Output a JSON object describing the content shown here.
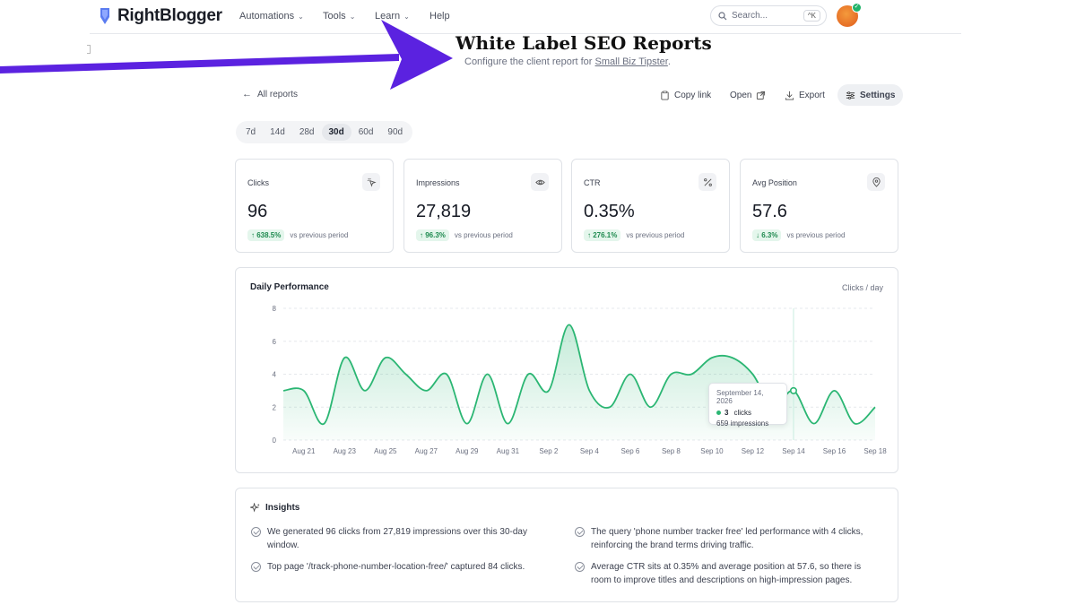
{
  "brand": {
    "name": "RightBlogger",
    "accent": "#2bb673",
    "arrow_color": "#5b22e0"
  },
  "nav": {
    "items": [
      {
        "label": "Automations",
        "has_menu": true
      },
      {
        "label": "Tools",
        "has_menu": true
      },
      {
        "label": "Learn",
        "has_menu": true
      },
      {
        "label": "Help",
        "has_menu": false
      }
    ],
    "search_placeholder": "Search...",
    "search_shortcut": "^K"
  },
  "header": {
    "title": "White Label SEO Reports",
    "subtitle_prefix": "Configure the client report for ",
    "client_link": "Small Biz Tipster",
    "subtitle_suffix": "."
  },
  "toolbar": {
    "back_label": "All reports",
    "copy_link": "Copy link",
    "open": "Open",
    "export": "Export",
    "settings": "Settings"
  },
  "ranges": [
    "7d",
    "14d",
    "28d",
    "30d",
    "60d",
    "90d"
  ],
  "active_range": "30d",
  "stats": [
    {
      "label": "Clicks",
      "value": "96",
      "delta": "638.5%",
      "direction": "up",
      "vs": "vs previous period",
      "icon": "cursor-click-icon"
    },
    {
      "label": "Impressions",
      "value": "27,819",
      "delta": "96.3%",
      "direction": "up",
      "vs": "vs previous period",
      "icon": "eye-icon"
    },
    {
      "label": "CTR",
      "value": "0.35%",
      "delta": "276.1%",
      "direction": "up",
      "vs": "vs previous period",
      "icon": "percent-icon"
    },
    {
      "label": "Avg Position",
      "value": "57.6",
      "delta": "6.3%",
      "direction": "down",
      "vs": "vs previous period",
      "icon": "map-pin-icon"
    }
  ],
  "chart_data": {
    "type": "area",
    "title": "Daily Performance",
    "unit_label": "Clicks / day",
    "x": [
      "Aug 20",
      "Aug 21",
      "Aug 22",
      "Aug 23",
      "Aug 24",
      "Aug 25",
      "Aug 26",
      "Aug 27",
      "Aug 28",
      "Aug 29",
      "Aug 30",
      "Aug 31",
      "Sep 1",
      "Sep 2",
      "Sep 3",
      "Sep 4",
      "Sep 5",
      "Sep 6",
      "Sep 7",
      "Sep 8",
      "Sep 9",
      "Sep 10",
      "Sep 11",
      "Sep 12",
      "Sep 13",
      "Sep 14",
      "Sep 15",
      "Sep 16",
      "Sep 17",
      "Sep 18"
    ],
    "x_tick_labels": [
      "Aug 21",
      "Aug 23",
      "Aug 25",
      "Aug 27",
      "Aug 29",
      "Aug 31",
      "Sep 2",
      "Sep 4",
      "Sep 6",
      "Sep 8",
      "Sep 10",
      "Sep 12",
      "Sep 14",
      "Sep 16",
      "Sep 18"
    ],
    "series": [
      {
        "values": [
          3,
          3,
          1,
          5,
          3,
          5,
          4,
          3,
          4,
          1,
          4,
          1,
          4,
          3,
          7,
          3,
          2,
          4,
          2,
          4,
          4,
          5,
          5,
          4,
          2,
          3,
          1,
          3,
          1,
          2
        ]
      }
    ],
    "ylim": [
      0,
      8
    ],
    "y_ticks": [
      0,
      2,
      4,
      6,
      8
    ],
    "grid": true,
    "tooltip": {
      "date": "September 14, 2026",
      "clicks": "3",
      "clicks_label": "clicks",
      "impressions": "659 impressions",
      "index": 25
    }
  },
  "insights": {
    "title": "Insights",
    "items": [
      "We generated 96 clicks from 27,819 impressions over this 30-day window.",
      "The query 'phone number tracker free' led performance with 4 clicks, reinforcing the brand terms driving traffic.",
      "Top page '/track-phone-number-location-free/' captured 84 clicks.",
      "Average CTR sits at 0.35% and average position at 57.6, so there is room to improve titles and descriptions on high-impression pages."
    ]
  }
}
